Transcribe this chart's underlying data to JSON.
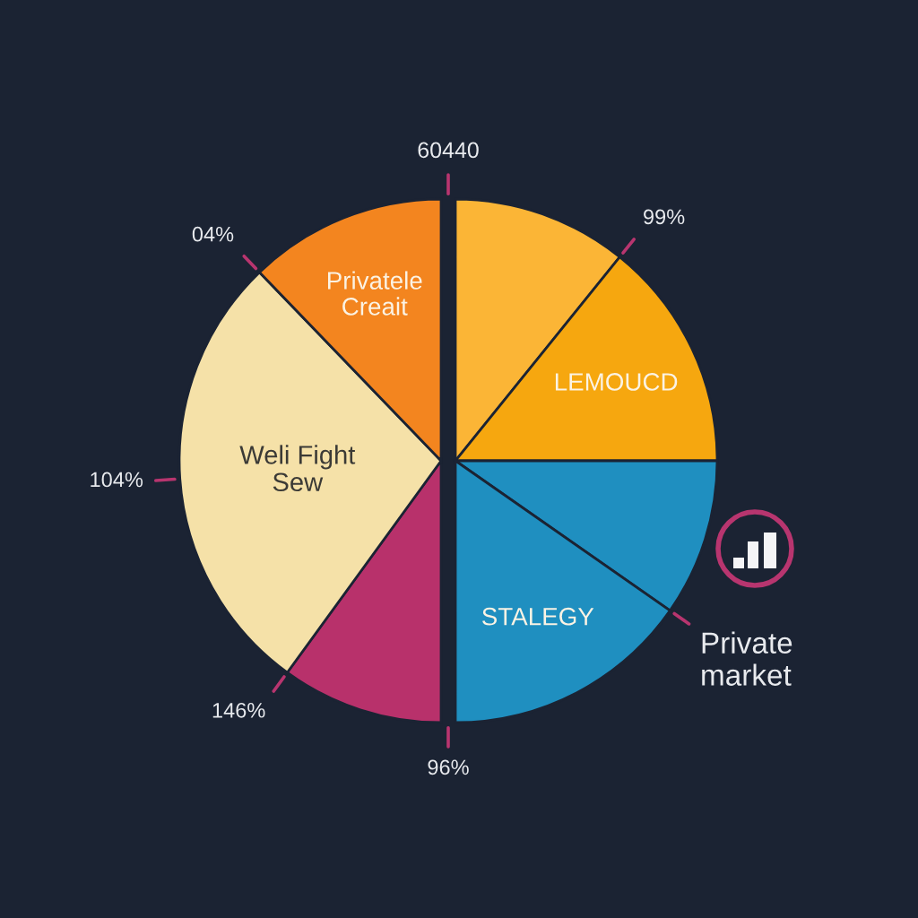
{
  "chart_data": {
    "type": "pie",
    "categories": [
      null,
      "LEMOUCD",
      null,
      "STALEGY",
      null,
      "Weli Fight\nSew",
      "Privatele\nCreait"
    ],
    "values": [
      10.8,
      14.2,
      9.7,
      15.3,
      10.0,
      27.8,
      12.2
    ],
    "colors": [
      "#fbb536",
      "#f6a70f",
      "#1f8fc0",
      "#1f8fc0",
      "#b8316b",
      "#f5e1a8",
      "#f3851f"
    ],
    "annotations": [
      "60440",
      "04%",
      "99%",
      "104%",
      "146%",
      "96%",
      "Private\nmarket"
    ]
  }
}
